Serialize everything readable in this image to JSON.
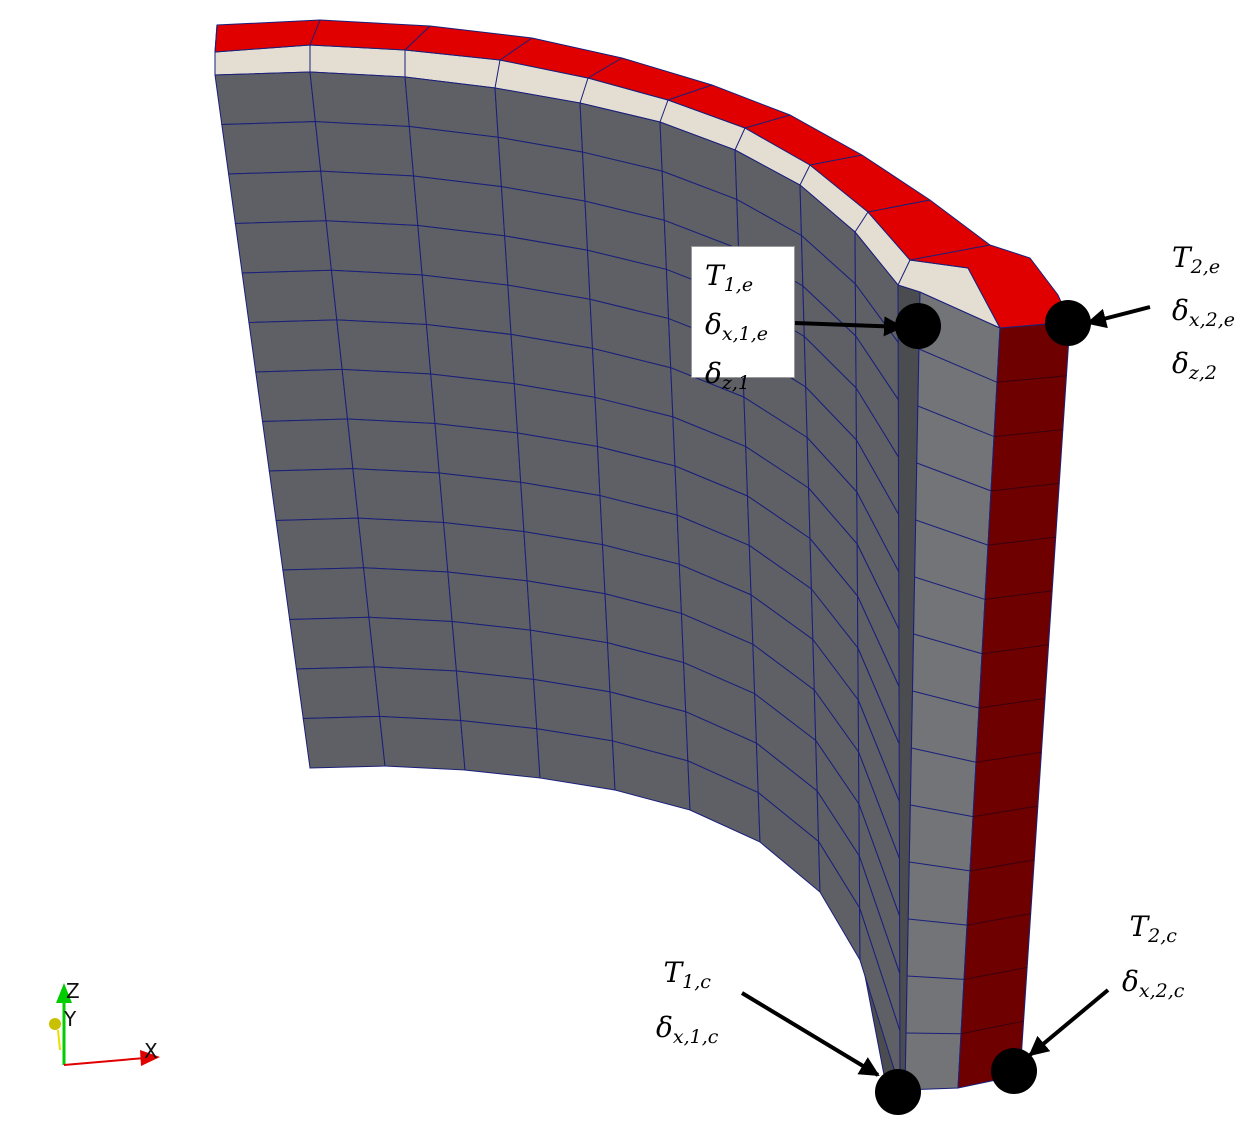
{
  "colors": {
    "front_face": "#5e6065",
    "side_face": "#727478",
    "mesh_line": "#1a1f7a",
    "beige_layer": "#e4ded2",
    "red_layer_top": "#e00000",
    "red_layer_side": "#6e0000",
    "marker": "#000000"
  },
  "labels": {
    "node_1e": [
      {
        "sym": "T",
        "sub": "1,e"
      },
      {
        "sym": "δ",
        "sub": "x,1,e"
      },
      {
        "sym": "δ",
        "sub": "z,1"
      }
    ],
    "node_2e": [
      {
        "sym": "T",
        "sub": "2,e"
      },
      {
        "sym": "δ",
        "sub": "x,2,e"
      },
      {
        "sym": "δ",
        "sub": "z,2"
      }
    ],
    "node_1c": [
      {
        "sym": "T",
        "sub": "1,c"
      },
      {
        "sym": "δ",
        "sub": "x,1,c"
      }
    ],
    "node_2c": [
      {
        "sym": "T",
        "sub": "2,c"
      },
      {
        "sym": "δ",
        "sub": "x,2,c"
      }
    ]
  },
  "axes": {
    "x": "X",
    "y": "Y",
    "z": "Z",
    "x_color": "#e00000",
    "y_color": "#c8c000",
    "z_color": "#00cc00"
  }
}
